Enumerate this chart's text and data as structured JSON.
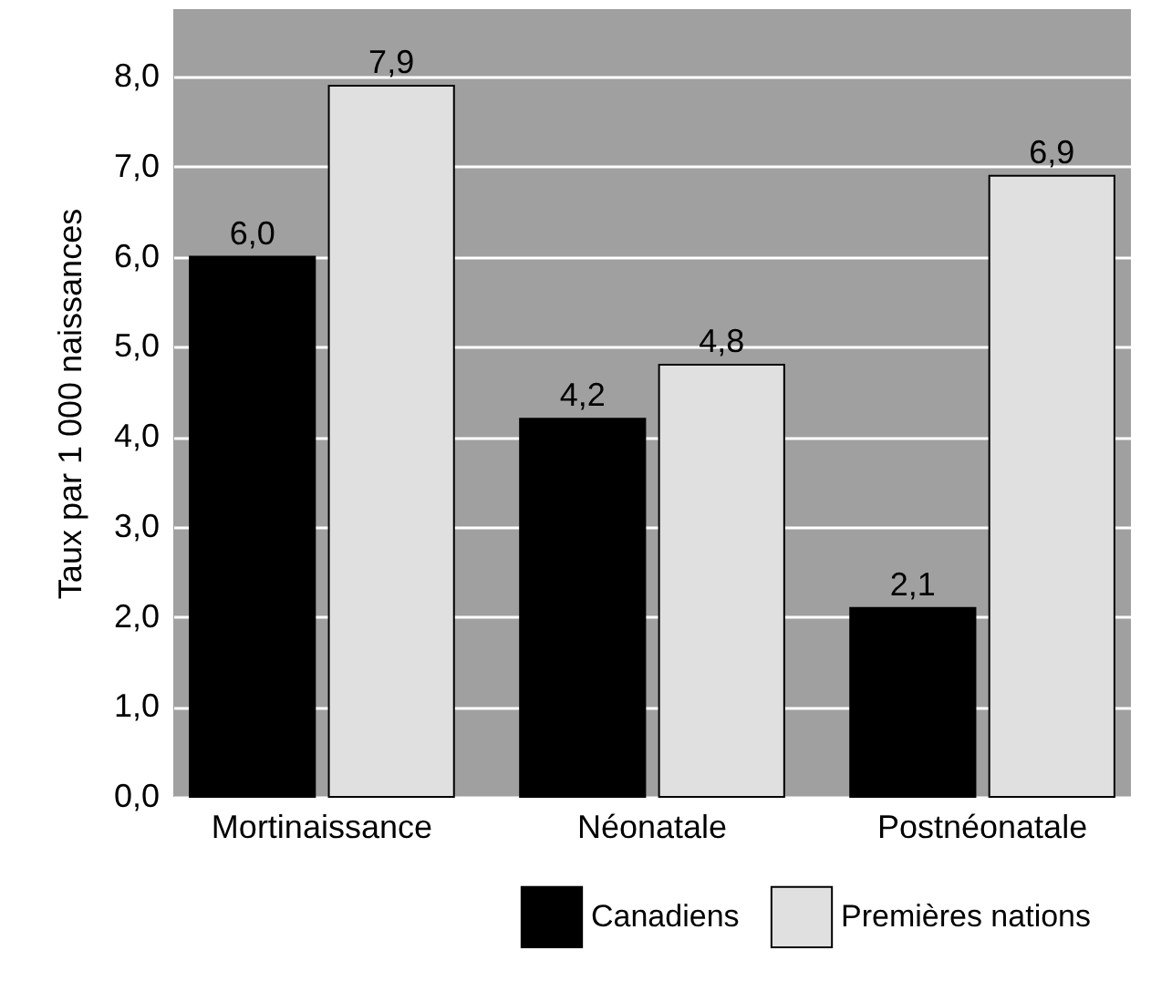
{
  "chart_data": {
    "type": "bar",
    "ylabel": "Taux par 1 000 naissances",
    "categories": [
      "Mortinaissance",
      "Néonatale",
      "Postnéonatale"
    ],
    "series": [
      {
        "name": "Canadiens",
        "color": "#000000",
        "values": [
          6.0,
          4.2,
          2.1
        ],
        "value_labels": [
          "6,0",
          "4,2",
          "2,1"
        ]
      },
      {
        "name": "Premières nations",
        "color": "#e0e0e0",
        "values": [
          7.9,
          4.8,
          6.9
        ],
        "value_labels": [
          "7,9",
          "4,8",
          "6,9"
        ]
      }
    ],
    "ylim": [
      0,
      8.75
    ],
    "yticks": [
      {
        "value": 0,
        "label": "0,0"
      },
      {
        "value": 1,
        "label": "1,0"
      },
      {
        "value": 2,
        "label": "2,0"
      },
      {
        "value": 3,
        "label": "3,0"
      },
      {
        "value": 4,
        "label": "4,0"
      },
      {
        "value": 5,
        "label": "5,0"
      },
      {
        "value": 6,
        "label": "6,0"
      },
      {
        "value": 7,
        "label": "7,0"
      },
      {
        "value": 8,
        "label": "8,0"
      }
    ],
    "grid": "y",
    "legend": "bottom"
  }
}
